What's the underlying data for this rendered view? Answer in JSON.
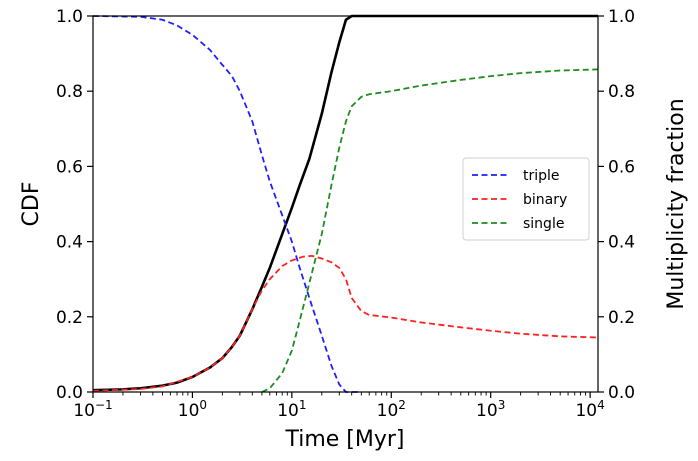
{
  "chart_data": {
    "type": "line",
    "xlabel": "Time [Myr]",
    "ylabel": "CDF",
    "ylabel_right": "Multiplicity fraction",
    "xscale": "log",
    "xlim": [
      0.1,
      12000
    ],
    "ylim": [
      0,
      1.0
    ],
    "ylim_right": [
      0,
      1.0
    ],
    "x_ticks": [
      0.1,
      1,
      10,
      100,
      1000,
      10000
    ],
    "x_tick_labels": [
      {
        "base": "10",
        "exp": "−1"
      },
      {
        "base": "10",
        "exp": "0"
      },
      {
        "base": "10",
        "exp": "1"
      },
      {
        "base": "10",
        "exp": "2"
      },
      {
        "base": "10",
        "exp": "3"
      },
      {
        "base": "10",
        "exp": "4"
      }
    ],
    "y_ticks": [
      "0.0",
      "0.2",
      "0.4",
      "0.6",
      "0.8",
      "1.0"
    ],
    "y_ticks_right": [
      "0.0",
      "0.2",
      "0.4",
      "0.6",
      "0.8",
      "1.0"
    ],
    "legend_position": "center-right",
    "series": [
      {
        "axis": "left",
        "color": "#000000",
        "style": "solid",
        "points": [
          [
            0.1,
            0.005
          ],
          [
            0.2,
            0.007
          ],
          [
            0.3,
            0.01
          ],
          [
            0.5,
            0.017
          ],
          [
            0.7,
            0.025
          ],
          [
            1.0,
            0.04
          ],
          [
            1.5,
            0.065
          ],
          [
            2.0,
            0.09
          ],
          [
            2.5,
            0.12
          ],
          [
            3.0,
            0.15
          ],
          [
            4.0,
            0.22
          ],
          [
            5.0,
            0.28
          ],
          [
            6.0,
            0.33
          ],
          [
            8.0,
            0.42
          ],
          [
            10.0,
            0.49
          ],
          [
            12.0,
            0.55
          ],
          [
            15.0,
            0.62
          ],
          [
            20.0,
            0.74
          ],
          [
            25.0,
            0.85
          ],
          [
            30.0,
            0.93
          ],
          [
            35.0,
            0.99
          ],
          [
            40.0,
            1.0
          ],
          [
            100.0,
            1.0
          ],
          [
            1000.0,
            1.0
          ],
          [
            12000.0,
            1.0
          ]
        ]
      },
      {
        "name": "triple",
        "axis": "right",
        "color": "#1f1fff",
        "style": "dashed",
        "points": [
          [
            0.1,
            1.0
          ],
          [
            0.3,
            0.998
          ],
          [
            0.5,
            0.99
          ],
          [
            0.7,
            0.975
          ],
          [
            1.0,
            0.95
          ],
          [
            1.5,
            0.91
          ],
          [
            2.0,
            0.87
          ],
          [
            2.5,
            0.84
          ],
          [
            3.0,
            0.8
          ],
          [
            4.0,
            0.72
          ],
          [
            5.0,
            0.63
          ],
          [
            6.0,
            0.56
          ],
          [
            8.0,
            0.47
          ],
          [
            10.0,
            0.4
          ],
          [
            12.0,
            0.33
          ],
          [
            15.0,
            0.25
          ],
          [
            20.0,
            0.15
          ],
          [
            25.0,
            0.07
          ],
          [
            30.0,
            0.02
          ],
          [
            35.0,
            0.0
          ],
          [
            50.0,
            0.0
          ]
        ]
      },
      {
        "name": "binary",
        "axis": "right",
        "color": "#ff2020",
        "style": "dashed",
        "points": [
          [
            0.1,
            0.003
          ],
          [
            0.3,
            0.008
          ],
          [
            0.5,
            0.015
          ],
          [
            1.0,
            0.04
          ],
          [
            1.5,
            0.065
          ],
          [
            2.0,
            0.09
          ],
          [
            2.5,
            0.12
          ],
          [
            3.0,
            0.15
          ],
          [
            4.0,
            0.22
          ],
          [
            5.0,
            0.27
          ],
          [
            6.0,
            0.3
          ],
          [
            8.0,
            0.335
          ],
          [
            10.0,
            0.35
          ],
          [
            13.0,
            0.36
          ],
          [
            16.0,
            0.362
          ],
          [
            20.0,
            0.355
          ],
          [
            25.0,
            0.345
          ],
          [
            30.0,
            0.33
          ],
          [
            35.0,
            0.3
          ],
          [
            40.0,
            0.25
          ],
          [
            50.0,
            0.215
          ],
          [
            60.0,
            0.205
          ],
          [
            100.0,
            0.198
          ],
          [
            200.0,
            0.185
          ],
          [
            500.0,
            0.172
          ],
          [
            1000.0,
            0.163
          ],
          [
            2000.0,
            0.155
          ],
          [
            5000.0,
            0.148
          ],
          [
            12000.0,
            0.145
          ]
        ]
      },
      {
        "name": "single",
        "axis": "right",
        "color": "#1e8c1e",
        "style": "dashed",
        "points": [
          [
            5.0,
            0.0
          ],
          [
            6.0,
            0.01
          ],
          [
            8.0,
            0.05
          ],
          [
            10.0,
            0.11
          ],
          [
            12.0,
            0.19
          ],
          [
            15.0,
            0.29
          ],
          [
            20.0,
            0.42
          ],
          [
            25.0,
            0.55
          ],
          [
            30.0,
            0.65
          ],
          [
            35.0,
            0.72
          ],
          [
            40.0,
            0.76
          ],
          [
            50.0,
            0.785
          ],
          [
            60.0,
            0.792
          ],
          [
            100.0,
            0.8
          ],
          [
            200.0,
            0.815
          ],
          [
            500.0,
            0.83
          ],
          [
            1000.0,
            0.84
          ],
          [
            2000.0,
            0.848
          ],
          [
            5000.0,
            0.855
          ],
          [
            12000.0,
            0.858
          ]
        ]
      }
    ]
  }
}
